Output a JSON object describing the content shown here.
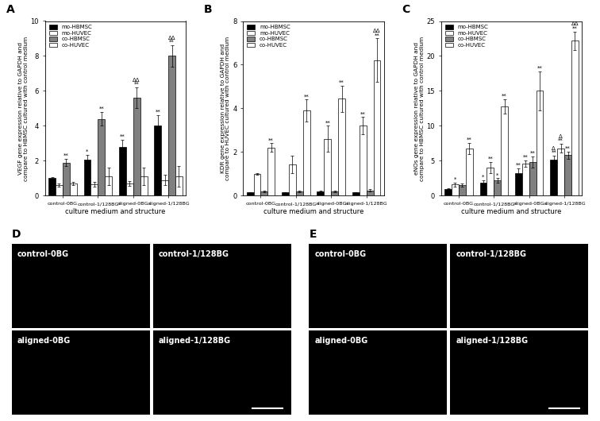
{
  "chart_data": [
    {
      "type": "bar",
      "y_label": "VEGF gene expression relative to GAPDH and\ncompare to HBMSC cultured with control medium",
      "x_label": "culture medium and structure",
      "categories": [
        "control-0BG",
        "control-1/128BG",
        "aligned-0BG",
        "aligned-1/128BG"
      ],
      "ylim": [
        0,
        10
      ],
      "yticks": [
        0,
        2,
        4,
        6,
        8,
        10
      ],
      "legend": "upper left",
      "series": [
        {
          "name": "mo-HBMSC",
          "color": "#000000",
          "values": [
            1.0,
            2.05,
            2.8,
            4.0
          ],
          "errors": [
            0.05,
            0.3,
            0.4,
            0.6
          ],
          "annotations": [
            null,
            "*",
            "**",
            "**"
          ]
        },
        {
          "name": "mo-HUVEC",
          "color": "#ffffff",
          "values": [
            0.6,
            0.65,
            0.7,
            0.9
          ],
          "errors": [
            0.1,
            0.15,
            0.15,
            0.3
          ],
          "annotations": [
            null,
            null,
            null,
            null
          ]
        },
        {
          "name": "co-HBMSC",
          "color": "#808080",
          "values": [
            1.9,
            4.4,
            5.6,
            8.0
          ],
          "errors": [
            0.2,
            0.4,
            0.6,
            0.6
          ],
          "annotations": [
            "**",
            "**",
            "ΔΔ\n**",
            "ΔΔ\n**"
          ]
        },
        {
          "name": "co-HUVEC",
          "color": "#ffffff",
          "values": [
            0.7,
            1.1,
            1.1,
            1.1
          ],
          "errors": [
            0.1,
            0.5,
            0.5,
            0.6
          ],
          "annotations": [
            null,
            null,
            null,
            null
          ]
        }
      ]
    },
    {
      "type": "bar",
      "y_label": "KDR gene expression relative to GAPDH and\ncompare to HUVEC cultured with control medium",
      "x_label": "culture medium and structure",
      "categories": [
        "control-0BG",
        "control-1/128BG",
        "aligned-0BG",
        "aligned-1/128BG"
      ],
      "ylim": [
        0,
        8
      ],
      "yticks": [
        0,
        2,
        4,
        6,
        8
      ],
      "legend": "upper left",
      "series": [
        {
          "name": "mo-HBMSC",
          "color": "#000000",
          "values": [
            0.15,
            0.15,
            0.2,
            0.15
          ],
          "errors": [
            0.02,
            0.02,
            0.03,
            0.02
          ],
          "annotations": [
            null,
            null,
            null,
            null
          ]
        },
        {
          "name": "mo-HUVEC",
          "color": "#ffffff",
          "values": [
            1.0,
            1.45,
            2.6,
            3.2
          ],
          "errors": [
            0.05,
            0.4,
            0.6,
            0.4
          ],
          "annotations": [
            null,
            null,
            "**",
            "**"
          ]
        },
        {
          "name": "co-HBMSC",
          "color": "#808080",
          "values": [
            0.2,
            0.2,
            0.2,
            0.25
          ],
          "errors": [
            0.03,
            0.03,
            0.03,
            0.05
          ],
          "annotations": [
            null,
            null,
            null,
            null
          ]
        },
        {
          "name": "co-HUVEC",
          "color": "#ffffff",
          "values": [
            2.2,
            3.9,
            4.45,
            6.2
          ],
          "errors": [
            0.2,
            0.5,
            0.6,
            1.0
          ],
          "annotations": [
            "**",
            "**",
            "**",
            "ΔΔ\n**"
          ]
        }
      ]
    },
    {
      "type": "bar",
      "y_label": "eNOs gene expression relative to GAPDH and\ncompare to HBMSC cultured with control medium",
      "x_label": "culture medium and structure",
      "categories": [
        "control-0BG",
        "control-1/128BG",
        "aligned-0BG",
        "aligned-1/128BG"
      ],
      "ylim": [
        0,
        25
      ],
      "yticks": [
        0,
        5,
        10,
        15,
        20,
        25
      ],
      "legend": "upper left",
      "series": [
        {
          "name": "mo-HBMSC",
          "color": "#000000",
          "values": [
            1.0,
            1.9,
            3.2,
            5.2
          ],
          "errors": [
            0.05,
            0.3,
            0.7,
            0.5
          ],
          "annotations": [
            null,
            "*",
            "**",
            "Δ\n**"
          ]
        },
        {
          "name": "mo-HUVEC",
          "color": "#ffffff",
          "values": [
            1.6,
            4.0,
            4.6,
            6.8
          ],
          "errors": [
            0.3,
            0.8,
            0.5,
            0.6
          ],
          "annotations": [
            "*",
            "**",
            "**",
            "Δ\n**"
          ]
        },
        {
          "name": "co-HBMSC",
          "color": "#808080",
          "values": [
            1.5,
            2.2,
            4.8,
            5.8
          ],
          "errors": [
            0.2,
            0.3,
            0.8,
            0.5
          ],
          "annotations": [
            null,
            "*",
            "**",
            "**"
          ]
        },
        {
          "name": "co-HUVEC",
          "color": "#ffffff",
          "values": [
            6.8,
            12.8,
            15.0,
            22.2
          ],
          "errors": [
            0.8,
            1.0,
            2.8,
            1.3
          ],
          "annotations": [
            "**",
            "**",
            "**",
            "ΔΔ\n**"
          ]
        }
      ]
    }
  ],
  "panel_labels": [
    "A",
    "B",
    "C"
  ],
  "image_panels": [
    {
      "panel": "D",
      "labels": [
        "control-0BG",
        "control-1/128BG",
        "aligned-0BG",
        "aligned-1/128BG"
      ]
    },
    {
      "panel": "E",
      "labels": [
        "control-0BG",
        "control-1/128BG",
        "aligned-0BG",
        "aligned-1/128BG"
      ]
    }
  ]
}
